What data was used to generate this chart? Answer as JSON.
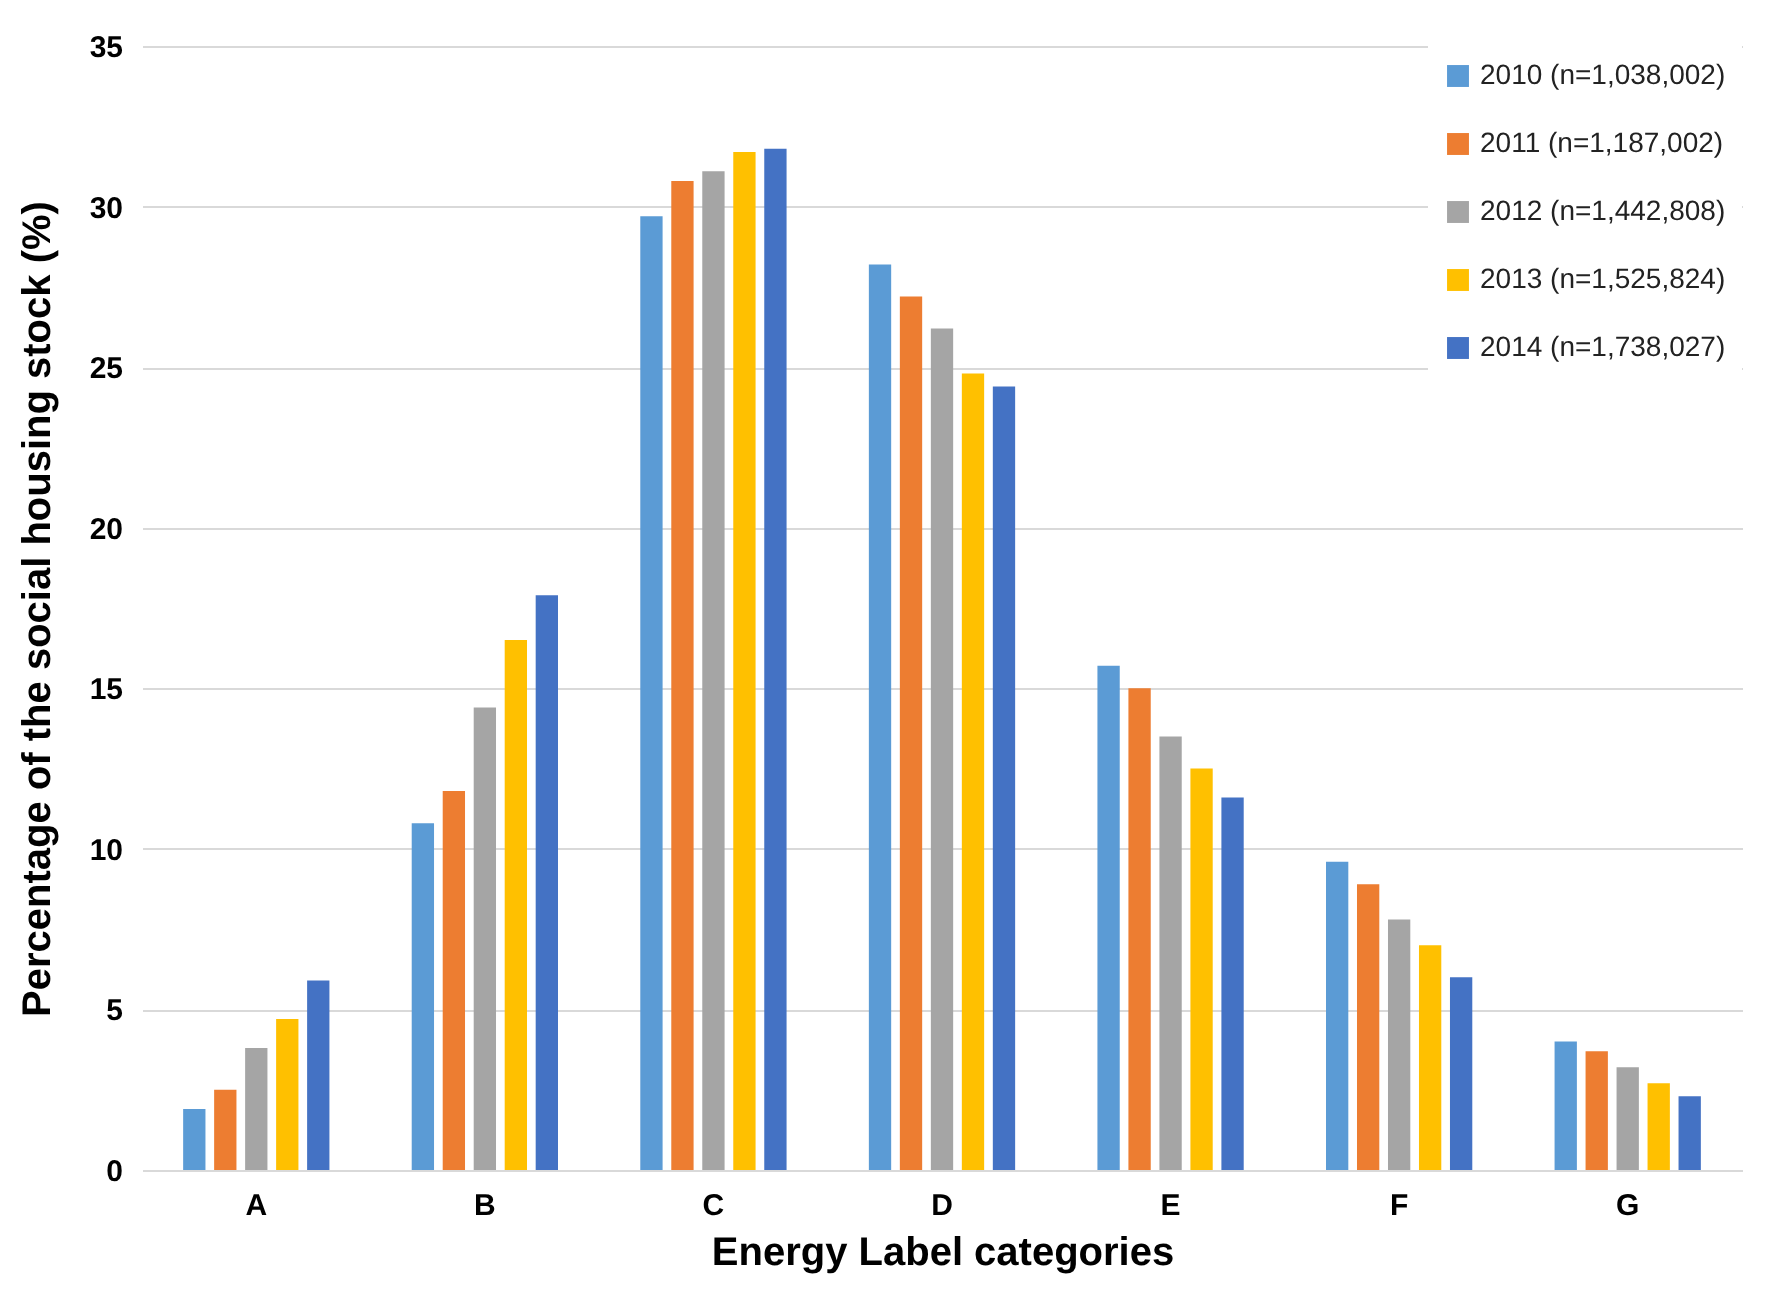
{
  "chart_data": {
    "type": "bar",
    "xlabel": "Energy Label categories",
    "ylabel": "Percentage of the social housing stock (%)",
    "categories": [
      "A",
      "B",
      "C",
      "D",
      "E",
      "F",
      "G"
    ],
    "series": [
      {
        "name": "2010 (n=1,038,002)",
        "color": "#5b9bd5",
        "values": [
          1.9,
          10.8,
          29.7,
          28.2,
          15.7,
          9.6,
          4.0
        ]
      },
      {
        "name": "2011 (n=1,187,002)",
        "color": "#ed7d31",
        "values": [
          2.5,
          11.8,
          30.8,
          27.2,
          15.0,
          8.9,
          3.7
        ]
      },
      {
        "name": "2012 (n=1,442,808)",
        "color": "#a5a5a5",
        "values": [
          3.8,
          14.4,
          31.1,
          26.2,
          13.5,
          7.8,
          3.2
        ]
      },
      {
        "name": "2013 (n=1,525,824)",
        "color": "#ffc000",
        "values": [
          4.7,
          16.5,
          31.7,
          24.8,
          12.5,
          7.0,
          2.7
        ]
      },
      {
        "name": "2014 (n=1,738,027)",
        "color": "#4472c4",
        "values": [
          5.9,
          17.9,
          31.8,
          24.4,
          11.6,
          6.0,
          2.3
        ]
      }
    ],
    "ylim": [
      0,
      35
    ],
    "yticks": [
      0,
      5,
      10,
      15,
      20,
      25,
      30,
      35
    ],
    "grid": "y",
    "legend": "top right"
  }
}
